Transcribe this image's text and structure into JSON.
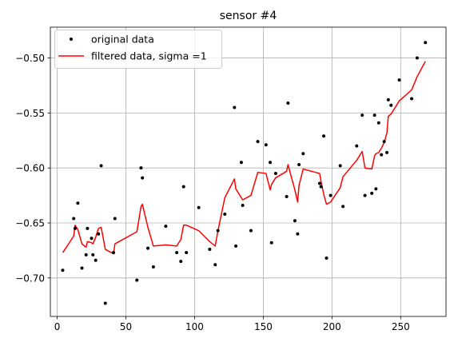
{
  "chart_data": {
    "type": "scatter",
    "title": "sensor #4",
    "xlabel": "",
    "ylabel": "",
    "xlim": [
      -5,
      283
    ],
    "ylim": [
      -0.735,
      -0.472
    ],
    "xticks": [
      0,
      50,
      100,
      150,
      200,
      250
    ],
    "xtick_labels": [
      "0",
      "50",
      "100",
      "150",
      "200",
      "250"
    ],
    "yticks": [
      -0.7,
      -0.65,
      -0.6,
      -0.55,
      -0.5
    ],
    "ytick_labels": [
      "−0.70",
      "−0.65",
      "−0.60",
      "−0.55",
      "−0.50"
    ],
    "grid": true,
    "legend_position": "upper-left",
    "series": [
      {
        "name": "original data",
        "style": "points",
        "color": "#000000",
        "x": [
          4,
          12,
          13,
          15,
          18,
          21,
          22,
          25,
          26,
          28,
          30,
          32,
          35,
          41,
          42,
          58,
          61,
          62,
          66,
          70,
          79,
          87,
          90,
          92,
          94,
          103,
          111,
          115,
          117,
          122,
          129,
          130,
          134,
          135,
          141,
          146,
          152,
          155,
          156,
          159,
          167,
          168,
          173,
          175,
          176,
          179,
          191,
          192,
          194,
          196,
          199,
          206,
          208,
          218,
          222,
          224,
          229,
          231,
          232,
          234,
          236,
          238,
          240,
          241,
          243,
          249,
          258,
          262,
          268
        ],
        "y": [
          -0.693,
          -0.646,
          -0.655,
          -0.632,
          -0.691,
          -0.679,
          -0.655,
          -0.664,
          -0.679,
          -0.684,
          -0.66,
          -0.598,
          -0.723,
          -0.677,
          -0.646,
          -0.702,
          -0.6,
          -0.609,
          -0.673,
          -0.69,
          -0.653,
          -0.677,
          -0.685,
          -0.617,
          -0.677,
          -0.636,
          -0.674,
          -0.688,
          -0.657,
          -0.642,
          -0.545,
          -0.671,
          -0.595,
          -0.634,
          -0.657,
          -0.576,
          -0.579,
          -0.595,
          -0.668,
          -0.605,
          -0.626,
          -0.541,
          -0.648,
          -0.66,
          -0.597,
          -0.587,
          -0.614,
          -0.617,
          -0.571,
          -0.682,
          -0.625,
          -0.598,
          -0.635,
          -0.58,
          -0.552,
          -0.625,
          -0.623,
          -0.552,
          -0.619,
          -0.559,
          -0.588,
          -0.576,
          -0.586,
          -0.538,
          -0.543,
          -0.52,
          -0.537,
          -0.5,
          -0.486
        ]
      },
      {
        "name": "filtered data, sigma =1",
        "style": "line",
        "color": "#ff0000",
        "x": [
          4,
          12,
          13,
          15,
          18,
          21,
          22,
          25,
          26,
          28,
          30,
          32,
          35,
          41,
          42,
          58,
          61,
          62,
          66,
          70,
          79,
          87,
          90,
          92,
          94,
          103,
          111,
          115,
          117,
          122,
          129,
          130,
          134,
          135,
          141,
          146,
          152,
          155,
          156,
          159,
          167,
          168,
          173,
          175,
          176,
          179,
          191,
          192,
          194,
          196,
          199,
          206,
          208,
          218,
          222,
          224,
          229,
          231,
          232,
          234,
          236,
          238,
          240,
          241,
          243,
          249,
          258,
          262,
          268
        ],
        "y": [
          -0.677,
          -0.662,
          -0.652,
          -0.656,
          -0.669,
          -0.672,
          -0.667,
          -0.668,
          -0.669,
          -0.663,
          -0.655,
          -0.654,
          -0.674,
          -0.678,
          -0.669,
          -0.658,
          -0.635,
          -0.633,
          -0.654,
          -0.671,
          -0.67,
          -0.671,
          -0.665,
          -0.652,
          -0.652,
          -0.657,
          -0.667,
          -0.671,
          -0.657,
          -0.627,
          -0.61,
          -0.619,
          -0.627,
          -0.629,
          -0.625,
          -0.604,
          -0.605,
          -0.62,
          -0.615,
          -0.609,
          -0.603,
          -0.597,
          -0.62,
          -0.631,
          -0.616,
          -0.601,
          -0.605,
          -0.612,
          -0.624,
          -0.633,
          -0.631,
          -0.618,
          -0.608,
          -0.593,
          -0.585,
          -0.6,
          -0.601,
          -0.589,
          -0.587,
          -0.586,
          -0.582,
          -0.577,
          -0.568,
          -0.553,
          -0.551,
          -0.539,
          -0.529,
          -0.517,
          -0.503
        ]
      }
    ]
  }
}
